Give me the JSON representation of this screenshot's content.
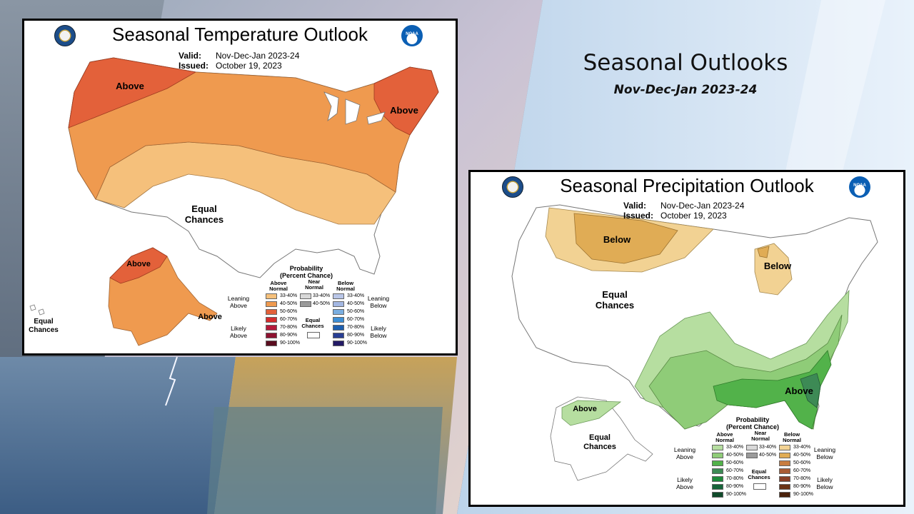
{
  "slide": {
    "title": "Seasonal Outlooks",
    "subtitle": "Nov-Dec-Jan  2023-24"
  },
  "temperature": {
    "title": "Seasonal Temperature Outlook",
    "valid_label": "Valid:",
    "valid_value": "Nov-Dec-Jan 2023-24",
    "issued_label": "Issued:",
    "issued_value": "October 19, 2023",
    "labels": {
      "above_nw": "Above",
      "above_ne": "Above",
      "equal": "Equal\nChances",
      "above_ak": "Above",
      "above_ak_se": "Above",
      "equal_hi": "Equal\nChances"
    },
    "legend": {
      "header": "Probability\n(Percent Chance)",
      "col_above": "Above\nNormal",
      "col_near": "Near\nNormal",
      "col_below": "Below\nNormal",
      "leaning_above": "Leaning\nAbove",
      "likely_above": "Likely\nAbove",
      "leaning_below": "Leaning\nBelow",
      "likely_below": "Likely\nBelow",
      "equal_chances": "Equal\nChances",
      "ranges": [
        "33-40%",
        "40-50%",
        "50-60%",
        "60-70%",
        "70-80%",
        "80-90%",
        "90-100%"
      ],
      "near_ranges": [
        "33-40%",
        "40-50%"
      ],
      "above_colors": [
        "#f5c07b",
        "#ef9a4f",
        "#e3613a",
        "#d42d2d",
        "#b5193a",
        "#8e1230",
        "#5a0d1f"
      ],
      "near_colors": [
        "#d8d8d8",
        "#9a9a9a"
      ],
      "below_colors": [
        "#b9c6e8",
        "#a3b7e2",
        "#7aaee0",
        "#3d8fd6",
        "#1d5fb0",
        "#283e94",
        "#231a66"
      ]
    }
  },
  "precipitation": {
    "title": "Seasonal Precipitation Outlook",
    "valid_label": "Valid:",
    "valid_value": "Nov-Dec-Jan 2023-24",
    "issued_label": "Issued:",
    "issued_value": "October 19, 2023",
    "labels": {
      "below_n": "Below",
      "below_mi": "Below",
      "equal": "Equal\nChances",
      "above_se": "Above",
      "above_ak": "Above",
      "equal_ak": "Equal\nChances"
    },
    "legend": {
      "header": "Probability\n(Percent Chance)",
      "col_above": "Above\nNormal",
      "col_near": "Near\nNormal",
      "col_below": "Below\nNormal",
      "leaning_above": "Leaning\nAbove",
      "likely_above": "Likely\nAbove",
      "leaning_below": "Leaning\nBelow",
      "likely_below": "Likely\nBelow",
      "equal_chances": "Equal\nChances",
      "ranges": [
        "33-40%",
        "40-50%",
        "50-60%",
        "60-70%",
        "70-80%",
        "80-90%",
        "90-100%"
      ],
      "near_ranges": [
        "33-40%",
        "40-50%"
      ],
      "above_colors": [
        "#b6dea0",
        "#8fcc78",
        "#52b24a",
        "#3d8a55",
        "#1d8a3a",
        "#17643a",
        "#0f4a2a"
      ],
      "near_colors": [
        "#d8d8d8",
        "#9a9a9a"
      ],
      "below_colors": [
        "#f2d293",
        "#e0ac55",
        "#c87c3f",
        "#a95b34",
        "#8a3f26",
        "#6b3316",
        "#4a210b"
      ]
    }
  },
  "colors": {
    "temp_above_33": "#f5c07b",
    "temp_above_40": "#ef9a4f",
    "temp_above_50": "#e3613a",
    "precip_above_33": "#b6dea0",
    "precip_above_40": "#8fcc78",
    "precip_above_50": "#52b24a",
    "precip_above_60": "#3d8a55",
    "precip_below_33": "#f2d293",
    "precip_below_40": "#e0ac55"
  }
}
